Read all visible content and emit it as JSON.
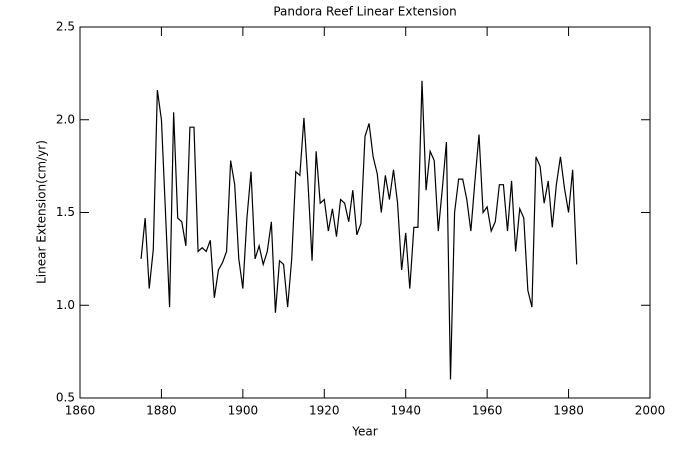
{
  "chart_data": {
    "type": "line",
    "title": "Pandora Reef Linear Extension",
    "xlabel": "Year",
    "ylabel": "Linear Extension(cm/yr)",
    "xlim": [
      1860,
      2000
    ],
    "xticks": [
      1860,
      1880,
      1900,
      1920,
      1940,
      1960,
      1980,
      2000
    ],
    "ylim": [
      0.5,
      2.5
    ],
    "yticks": [
      0.5,
      {
        "value": 1.0,
        "label": "1.0"
      },
      1.5,
      {
        "value": 2.0,
        "label": "2.0"
      },
      2.5
    ],
    "color": "#000000",
    "x": [
      1875,
      1876,
      1877,
      1878,
      1879,
      1880,
      1881,
      1882,
      1883,
      1884,
      1885,
      1886,
      1887,
      1888,
      1889,
      1890,
      1891,
      1892,
      1893,
      1894,
      1895,
      1896,
      1897,
      1898,
      1899,
      1900,
      1901,
      1902,
      1903,
      1904,
      1905,
      1906,
      1907,
      1908,
      1909,
      1910,
      1911,
      1912,
      1913,
      1914,
      1915,
      1916,
      1917,
      1918,
      1919,
      1920,
      1921,
      1922,
      1923,
      1924,
      1925,
      1926,
      1927,
      1928,
      1929,
      1930,
      1931,
      1932,
      1933,
      1934,
      1935,
      1936,
      1937,
      1938,
      1939,
      1940,
      1941,
      1942,
      1943,
      1944,
      1945,
      1946,
      1947,
      1948,
      1949,
      1950,
      1951,
      1952,
      1953,
      1954,
      1955,
      1956,
      1957,
      1958,
      1959,
      1960,
      1961,
      1962,
      1963,
      1964,
      1965,
      1966,
      1967,
      1968,
      1969,
      1970,
      1971,
      1972,
      1973,
      1974,
      1975,
      1976,
      1977,
      1978,
      1979,
      1980,
      1981,
      1982
    ],
    "values": [
      1.25,
      1.47,
      1.09,
      1.3,
      2.16,
      2.0,
      1.5,
      0.99,
      2.04,
      1.47,
      1.45,
      1.32,
      1.96,
      1.96,
      1.29,
      1.31,
      1.29,
      1.35,
      1.04,
      1.19,
      1.23,
      1.29,
      1.78,
      1.65,
      1.25,
      1.09,
      1.47,
      1.72,
      1.25,
      1.32,
      1.22,
      1.29,
      1.45,
      0.96,
      1.24,
      1.22,
      0.99,
      1.25,
      1.72,
      1.7,
      2.01,
      1.66,
      1.24,
      1.83,
      1.55,
      1.57,
      1.4,
      1.52,
      1.37,
      1.57,
      1.55,
      1.45,
      1.62,
      1.38,
      1.44,
      1.91,
      1.98,
      1.8,
      1.71,
      1.5,
      1.7,
      1.57,
      1.73,
      1.55,
      1.19,
      1.39,
      1.09,
      1.42,
      1.42,
      2.21,
      1.62,
      1.83,
      1.78,
      1.4,
      1.63,
      1.88,
      0.6,
      1.5,
      1.68,
      1.68,
      1.57,
      1.4,
      1.67,
      1.92,
      1.5,
      1.53,
      1.4,
      1.45,
      1.65,
      1.65,
      1.4,
      1.67,
      1.29,
      1.52,
      1.47,
      1.08,
      0.99,
      1.8,
      1.75,
      1.55,
      1.67,
      1.42,
      1.65,
      1.8,
      1.63,
      1.5,
      1.73,
      1.22
    ]
  }
}
